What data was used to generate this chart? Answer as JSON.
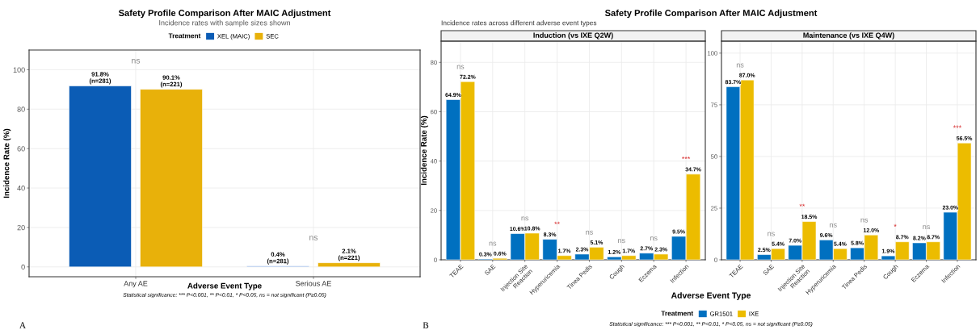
{
  "chart_data": [
    {
      "type": "bar",
      "title": "Safety Profile Comparison After MAIC Adjustment",
      "subtitle": "Incidence rates with sample sizes shown",
      "legend_title": "Treatment",
      "xlabel": "Adverse Event Type",
      "ylabel": "Incidence Rate (%)",
      "categories": [
        "Any AE",
        "Serious AE"
      ],
      "series": [
        {
          "name": "XEL (MAIC)",
          "color": "#0b5cb5",
          "colors": [
            "#0b5cb5",
            "#6f9fe0"
          ],
          "values": [
            91.8,
            0.4
          ],
          "value_labels": [
            "91.8%\n(n=281)",
            "0.4%\n(n=281)"
          ]
        },
        {
          "name": "SEC",
          "color": "#e8b10a",
          "values": [
            90.1,
            2.1
          ],
          "value_labels": [
            "90.1%\n(n=221)",
            "2.1%\n(n=221)"
          ]
        }
      ],
      "ylim": [
        -5,
        110
      ],
      "yticks": [
        0,
        20,
        40,
        60,
        80,
        100
      ],
      "grid": true,
      "legend": "top",
      "annotations": [
        "ns",
        "ns",
        "Statistical significance: *** P<0.001, ** P<0.01, * P<0.05, ns = not significant (P≥0.05)",
        "A"
      ]
    },
    {
      "type": "bar",
      "title": "Induction (vs IXE Q2W)",
      "subtitle": "Incidence rates across different adverse event types",
      "legend_title": "Treatment",
      "xlabel": "Adverse Event Type",
      "ylabel": "Incidence Rate (%)",
      "categories": [
        "TEAE",
        "SAE",
        "Injection Site\nReaction",
        "Hyperuricemia",
        "Tinea Pedis",
        "Cough",
        "Eczema",
        "Infection"
      ],
      "series": [
        {
          "name": "GR1501",
          "color": "#0070c0",
          "values": [
            64.9,
            0.3,
            10.6,
            8.3,
            2.3,
            1.2,
            2.7,
            9.5
          ],
          "value_labels": [
            "64.9%",
            "0.3%",
            "10.6%",
            "8.3%",
            "2.3%",
            "1.2%",
            "2.7%",
            "9.5%"
          ]
        },
        {
          "name": "IXE",
          "color": "#ecbc00",
          "values": [
            72.2,
            0.6,
            10.8,
            1.7,
            5.1,
            1.7,
            2.3,
            34.7
          ],
          "value_labels": [
            "72.2%",
            "0.6%",
            "10.8%",
            "1.7%",
            "5.1%",
            "1.7%",
            "2.3%",
            "34.7%"
          ]
        }
      ],
      "ylim": [
        0,
        88.6
      ],
      "yticks": [
        0,
        20,
        40,
        60,
        80
      ],
      "grid": true,
      "legend": "bottom",
      "annotations": [
        "ns",
        "ns",
        "ns",
        "**",
        "ns",
        "ns",
        "ns",
        "***",
        "Safety Profile Comparison After MAIC Adjustment",
        "Statistical significance: *** P<0.001, ** P<0.01, * P<0.05, ns = not significant (P≥0.05)",
        "B"
      ]
    },
    {
      "type": "bar",
      "title": "Maintenance (vs IXE Q4W)",
      "categories": [
        "TEAE",
        "SAE",
        "Injection Site\nReaction",
        "Hyperuricemia",
        "Tinea Pedis",
        "Cough",
        "Eczema",
        "Infection"
      ],
      "series": [
        {
          "color": "#0070c0",
          "values": [
            83.7,
            2.5,
            7.0,
            9.6,
            5.8,
            1.9,
            8.2,
            23.0
          ],
          "value_labels": [
            "83.7%",
            "2.5%",
            "7.0%",
            "9.6%",
            "5.8%",
            "1.9%",
            "8.2%",
            "23.0%"
          ]
        },
        {
          "color": "#ecbc00",
          "values": [
            87.0,
            5.4,
            18.5,
            5.4,
            12.0,
            8.7,
            8.7,
            56.5
          ],
          "value_labels": [
            "87.0%",
            "5.4%",
            "18.5%",
            "5.4%",
            "12.0%",
            "8.7%",
            "8.7%",
            "56.5%"
          ]
        }
      ],
      "ylim": [
        0,
        105.8
      ],
      "yticks": [
        0,
        25,
        50,
        75,
        100
      ],
      "grid": true,
      "annotations": [
        "ns",
        "ns",
        "**",
        "ns",
        "ns",
        "*",
        "ns",
        "***"
      ]
    }
  ]
}
